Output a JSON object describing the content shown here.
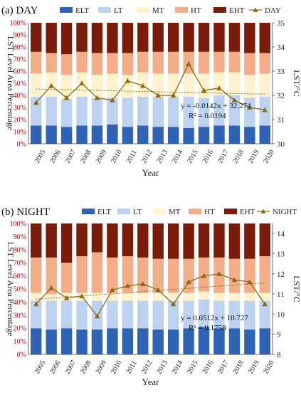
{
  "chart_data": [
    {
      "type": "bar",
      "panel_label": "(a) DAY",
      "stacked": true,
      "categories": [
        "2005",
        "2006",
        "2007",
        "2008",
        "2009",
        "2010",
        "2011",
        "2012",
        "2013",
        "2014",
        "2015",
        "2016",
        "2017",
        "2018",
        "2019",
        "2020"
      ],
      "xlabel": "Year",
      "ylabel": "LST Level Area Percentage",
      "ylim": [
        0,
        100
      ],
      "yticks": [
        "0%",
        "10%",
        "20%",
        "30%",
        "40%",
        "50%",
        "60%",
        "70%",
        "80%",
        "90%",
        "100%"
      ],
      "y2label": "LST/°C",
      "y2lim": [
        30,
        35
      ],
      "y2ticks": [
        "30",
        "31",
        "32",
        "33",
        "34",
        "35"
      ],
      "series": [
        {
          "name": "ELT",
          "color": "#2e63b8",
          "values": [
            15,
            15,
            14,
            15,
            15,
            16,
            14,
            15,
            14,
            14,
            13,
            14,
            15,
            15,
            14,
            15
          ]
        },
        {
          "name": "LT",
          "color": "#bdd2ef",
          "values": [
            24,
            24,
            23,
            24,
            23,
            22,
            24,
            24,
            25,
            25,
            26,
            24,
            25,
            25,
            24,
            24
          ]
        },
        {
          "name": "MT",
          "color": "#fff2cc",
          "values": [
            19,
            20,
            20,
            20,
            19,
            20,
            19,
            20,
            19,
            19,
            19,
            20,
            19,
            19,
            19,
            19
          ]
        },
        {
          "name": "HT",
          "color": "#f3ae88",
          "values": [
            18,
            16,
            17,
            17,
            18,
            17,
            18,
            17,
            18,
            18,
            18,
            18,
            17,
            17,
            18,
            17
          ]
        },
        {
          "name": "EHT",
          "color": "#7b1c0a",
          "values": [
            24,
            25,
            26,
            24,
            25,
            25,
            25,
            24,
            24,
            24,
            24,
            24,
            24,
            24,
            25,
            25
          ]
        }
      ],
      "line": {
        "name": "DAY",
        "color": "#8a6a16",
        "values": [
          31.7,
          32.4,
          31.9,
          32.5,
          31.9,
          31.8,
          32.6,
          32.4,
          32.0,
          32.0,
          33.3,
          32.2,
          32.3,
          31.8,
          31.5,
          31.4
        ]
      },
      "trend": {
        "start": 32.26,
        "end": 32.05,
        "equation": "y = -0.0142x + 32.274",
        "r2": "R² = 0.0194"
      }
    },
    {
      "type": "bar",
      "panel_label": "(b) NIGHT",
      "stacked": true,
      "categories": [
        "2005",
        "2006",
        "2007",
        "2008",
        "2009",
        "2010",
        "2011",
        "2012",
        "2013",
        "2014",
        "2015",
        "2016",
        "2017",
        "2018",
        "2019",
        "2020"
      ],
      "xlabel": "Year",
      "ylabel": "LST Level Area Percentage",
      "ylim": [
        0,
        100
      ],
      "yticks": [
        "0%",
        "10%",
        "20%",
        "30%",
        "40%",
        "50%",
        "60%",
        "70%",
        "80%",
        "90%",
        "100%"
      ],
      "y2label": "LST/°C",
      "y2lim": [
        8,
        14.5
      ],
      "y2ticks": [
        "8",
        "9",
        "10",
        "11",
        "12",
        "13",
        "14"
      ],
      "series": [
        {
          "name": "ELT",
          "color": "#2e63b8",
          "values": [
            20,
            19,
            20,
            19,
            19,
            20,
            20,
            20,
            19,
            19,
            20,
            21,
            20,
            20,
            19,
            20
          ]
        },
        {
          "name": "LT",
          "color": "#bdd2ef",
          "values": [
            21,
            22,
            21,
            22,
            22,
            21,
            21,
            21,
            22,
            22,
            21,
            21,
            21,
            21,
            22,
            21
          ]
        },
        {
          "name": "MT",
          "color": "#fff2cc",
          "values": [
            6,
            5,
            6,
            6,
            6,
            6,
            6,
            6,
            6,
            6,
            6,
            6,
            6,
            6,
            6,
            6
          ]
        },
        {
          "name": "HT",
          "color": "#f3ae88",
          "values": [
            27,
            28,
            23,
            28,
            31,
            27,
            28,
            27,
            26,
            26,
            26,
            26,
            27,
            26,
            26,
            28
          ]
        },
        {
          "name": "EHT",
          "color": "#7b1c0a",
          "values": [
            26,
            26,
            30,
            25,
            22,
            26,
            25,
            26,
            27,
            27,
            27,
            26,
            26,
            27,
            27,
            25
          ]
        }
      ],
      "line": {
        "name": "NIGHT",
        "color": "#8a6a16",
        "values": [
          10.5,
          11.3,
          10.8,
          10.9,
          9.9,
          11.2,
          11.4,
          11.5,
          11.2,
          10.5,
          11.6,
          11.9,
          12.0,
          11.7,
          11.6,
          10.5
        ]
      },
      "trend": {
        "start": 10.74,
        "end": 11.55,
        "equation": "y = 0.0512x + 10.727",
        "r2": "R² = 0.1758"
      }
    }
  ]
}
